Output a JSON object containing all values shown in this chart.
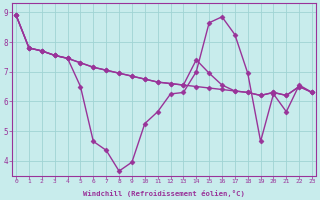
{
  "line1": [
    8.9,
    7.8,
    7.7,
    7.55,
    7.45,
    6.5,
    4.65,
    4.35,
    3.65,
    3.95,
    5.25,
    5.65,
    6.25,
    6.3,
    7.0,
    8.65,
    8.85,
    8.25,
    6.95,
    4.65,
    6.25,
    5.65,
    6.55,
    6.3
  ],
  "line2": [
    8.9,
    7.8,
    7.7,
    7.55,
    7.45,
    7.3,
    7.15,
    7.05,
    6.95,
    6.85,
    6.75,
    6.65,
    6.6,
    6.55,
    6.5,
    6.45,
    6.4,
    6.35,
    6.3,
    6.2,
    6.3,
    6.2,
    6.5,
    6.3
  ],
  "line3": [
    8.9,
    7.8,
    7.7,
    7.55,
    7.45,
    7.3,
    7.15,
    7.05,
    6.95,
    6.85,
    6.75,
    6.65,
    6.6,
    6.55,
    7.4,
    6.95,
    6.55,
    6.35,
    6.3,
    6.2,
    6.3,
    6.2,
    6.5,
    6.3
  ],
  "x": [
    0,
    1,
    2,
    3,
    4,
    5,
    6,
    7,
    8,
    9,
    10,
    11,
    12,
    13,
    14,
    15,
    16,
    17,
    18,
    19,
    20,
    21,
    22,
    23
  ],
  "xlabel": "Windchill (Refroidissement éolien,°C)",
  "ylim": [
    3.5,
    9.3
  ],
  "xlim": [
    -0.3,
    23.3
  ],
  "yticks": [
    4,
    5,
    6,
    7,
    8,
    9
  ],
  "xtick_labels": [
    "0",
    "1",
    "2",
    "3",
    "4",
    "5",
    "6",
    "7",
    "8",
    "9",
    "10",
    "11",
    "12",
    "13",
    "14",
    "15",
    "16",
    "17",
    "18",
    "19",
    "20",
    "21",
    "22",
    "23"
  ],
  "line_color": "#993399",
  "bg_color": "#c8ecec",
  "grid_color": "#a0d4d4",
  "marker": "D",
  "marker_size": 2.5,
  "line_width": 1.0
}
